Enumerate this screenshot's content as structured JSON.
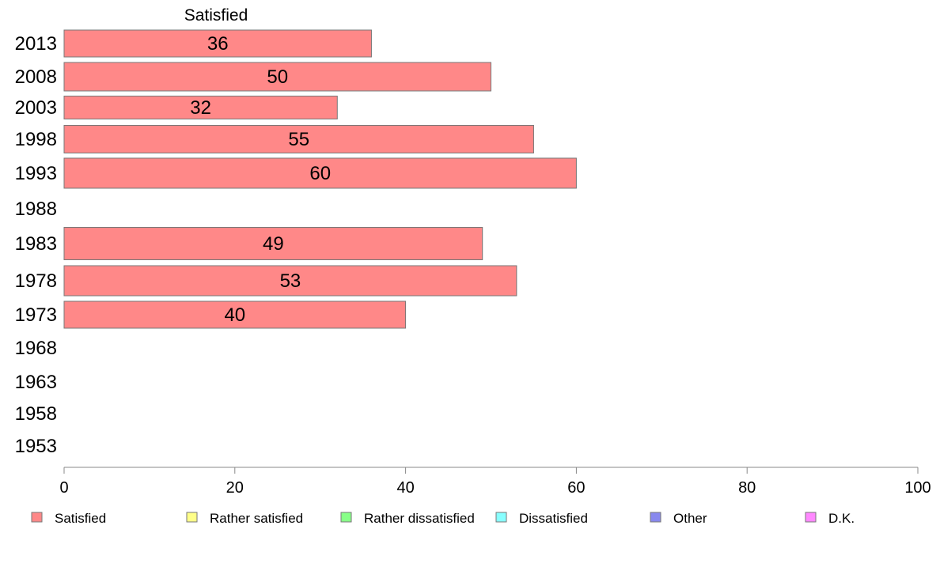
{
  "chart_data": {
    "type": "bar",
    "orientation": "horizontal",
    "title": "",
    "series_label": "Satisfied",
    "categories": [
      "2013",
      "2008",
      "2003",
      "1998",
      "1993",
      "1988",
      "1983",
      "1978",
      "1973",
      "1968",
      "1963",
      "1958",
      "1953"
    ],
    "series": [
      {
        "name": "Satisfied",
        "color": "#ff8888",
        "values": [
          36,
          50,
          32,
          55,
          60,
          null,
          49,
          53,
          40,
          null,
          null,
          null,
          null
        ]
      }
    ],
    "xlim": [
      0,
      100
    ],
    "xticks": [
      0,
      20,
      40,
      60,
      80,
      100
    ],
    "grid": false,
    "legend_position": "bottom",
    "legend": [
      {
        "label": "Satisfied",
        "color": "#ff8888"
      },
      {
        "label": "Rather satisfied",
        "color": "#ffff88"
      },
      {
        "label": "Rather dissatisfied",
        "color": "#88ff88"
      },
      {
        "label": "Dissatisfied",
        "color": "#88ffff"
      },
      {
        "label": "Other",
        "color": "#8888ee"
      },
      {
        "label": "D.K.",
        "color": "#ff88ff"
      }
    ]
  }
}
